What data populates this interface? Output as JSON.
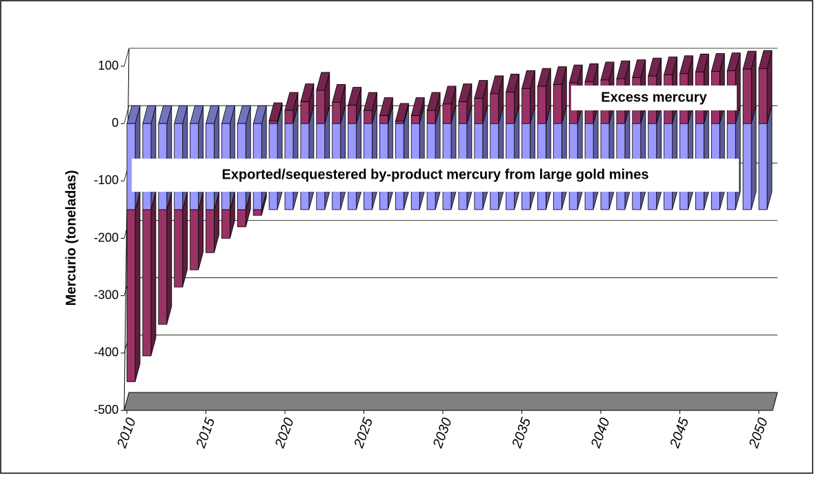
{
  "chart_data": {
    "type": "bar3d_stacked",
    "y_label": "Mercurio (toneladas)",
    "x": [
      2010,
      2011,
      2012,
      2013,
      2014,
      2015,
      2016,
      2017,
      2018,
      2019,
      2020,
      2021,
      2022,
      2023,
      2024,
      2025,
      2026,
      2027,
      2028,
      2029,
      2030,
      2031,
      2032,
      2033,
      2034,
      2035,
      2036,
      2037,
      2038,
      2039,
      2040,
      2041,
      2042,
      2043,
      2044,
      2045,
      2046,
      2047,
      2048,
      2049,
      2050
    ],
    "series": [
      {
        "name": "Exported/sequestered by-product mercury from large gold mines",
        "color": "#9999ff",
        "values": [
          -150,
          -150,
          -150,
          -150,
          -150,
          -150,
          -150,
          -150,
          -150,
          -150,
          -150,
          -150,
          -150,
          -150,
          -150,
          -150,
          -150,
          -150,
          -150,
          -150,
          -150,
          -150,
          -150,
          -150,
          -150,
          -150,
          -150,
          -150,
          -150,
          -150,
          -150,
          -150,
          -150,
          -150,
          -150,
          -150,
          -150,
          -150,
          -150,
          -150,
          -150
        ]
      },
      {
        "name": "Excess mercury",
        "color": "#993366",
        "values": [
          -300,
          -255,
          -200,
          -135,
          -105,
          -75,
          -50,
          -30,
          -10,
          5,
          23,
          38,
          58,
          37,
          32,
          23,
          14,
          4,
          14,
          23,
          34,
          38,
          44,
          52,
          55,
          61,
          65,
          68,
          71,
          73,
          76,
          78,
          80,
          83,
          85,
          87,
          90,
          91,
          92,
          95,
          96
        ]
      }
    ],
    "xlim": [
      2010,
      2050
    ],
    "xticks": [
      2010,
      2015,
      2020,
      2025,
      2030,
      2035,
      2040,
      2045,
      2050
    ],
    "ylim": [
      -500,
      100
    ],
    "yticks": [
      100,
      0,
      -100,
      -200,
      -300,
      -400,
      -500
    ],
    "grid": true
  }
}
